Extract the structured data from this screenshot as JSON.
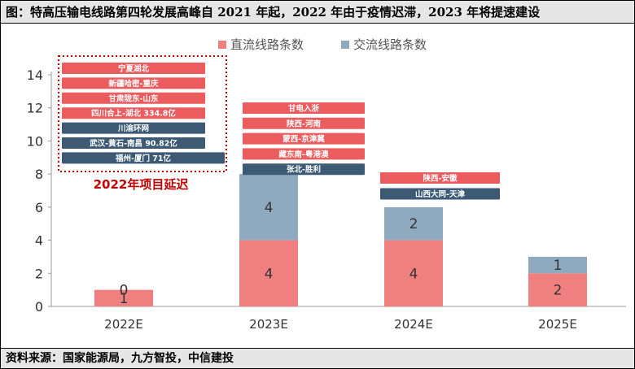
{
  "title": "图：特高压输电线路第四轮发展高峰自 2021 年起，2022 年由于疫情迟滞，2023 年将提速建设",
  "source": "资料来源：国家能源局，九方智投，中信建投",
  "colors": {
    "dc": "#f08080",
    "ac": "#8fa9bf",
    "dc_tag": "#ea5c5e",
    "ac_tag": "#3c5a74",
    "note": "#c00000"
  },
  "chart_data": {
    "type": "bar",
    "stacked": true,
    "categories": [
      "2022E",
      "2023E",
      "2024E",
      "2025E"
    ],
    "series": [
      {
        "name": "直流线路条数",
        "values": [
          1,
          4,
          4,
          2
        ]
      },
      {
        "name": "交流线路条数",
        "values": [
          0,
          4,
          2,
          1
        ]
      }
    ],
    "ylim": [
      0,
      14
    ],
    "yticks": [
      0,
      2,
      4,
      6,
      8,
      10,
      12,
      14
    ],
    "legend_position": "top",
    "grid": false,
    "project_tags": [
      {
        "category": "2022E",
        "items": [
          {
            "text": "宁夏湖北",
            "kind": "dc"
          },
          {
            "text": "新疆哈密-重庆",
            "kind": "dc"
          },
          {
            "text": "甘肃陇东-山东",
            "kind": "dc"
          },
          {
            "text": "四川合上-湖北 334.8亿",
            "kind": "dc"
          },
          {
            "text": "川渝环网",
            "kind": "ac"
          },
          {
            "text": "武汉-黄石-南昌 90.82亿",
            "kind": "ac"
          },
          {
            "text": "福州-厦门 71亿",
            "kind": "ac"
          }
        ]
      },
      {
        "category": "2023E",
        "items": [
          {
            "text": "甘电入浙",
            "kind": "dc"
          },
          {
            "text": "陕西-河南",
            "kind": "dc"
          },
          {
            "text": "蒙西-京津冀",
            "kind": "dc"
          },
          {
            "text": "藏东南-粤港澳",
            "kind": "dc"
          },
          {
            "text": "张北-胜利",
            "kind": "ac"
          }
        ]
      },
      {
        "category": "2024E",
        "items": [
          {
            "text": "陕西-安徽",
            "kind": "dc"
          },
          {
            "text": "山西大同-天津",
            "kind": "ac"
          }
        ]
      }
    ],
    "annotation": "2022年项目延迟"
  }
}
